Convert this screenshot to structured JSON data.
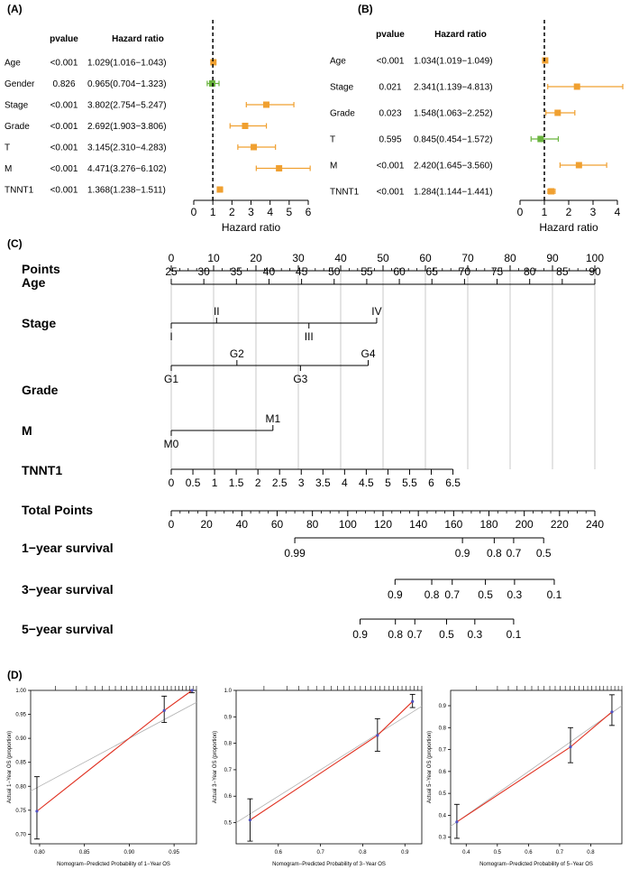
{
  "panels": {
    "A": {
      "label": "(A)",
      "header_pvalue": "pvalue",
      "header_hr": "Hazard ratio",
      "xlabel": "Hazard ratio",
      "xlim": [
        0,
        6
      ],
      "ticks": [
        "0",
        "1",
        "2",
        "3",
        "4",
        "5",
        "6"
      ],
      "ref": 1,
      "colors": {
        "sig": "#f0a030",
        "nonsig": "#6ab43e"
      },
      "rows": [
        {
          "name": "Age",
          "p": "<0.001",
          "hr_text": "1.029(1.016−1.043)",
          "hr": 1.029,
          "lo": 1.016,
          "hi": 1.043,
          "sig": true
        },
        {
          "name": "Gender",
          "p": "0.826",
          "hr_text": "0.965(0.704−1.323)",
          "hr": 0.965,
          "lo": 0.704,
          "hi": 1.323,
          "sig": false
        },
        {
          "name": "Stage",
          "p": "<0.001",
          "hr_text": "3.802(2.754−5.247)",
          "hr": 3.802,
          "lo": 2.754,
          "hi": 5.247,
          "sig": true
        },
        {
          "name": "Grade",
          "p": "<0.001",
          "hr_text": "2.692(1.903−3.806)",
          "hr": 2.692,
          "lo": 1.903,
          "hi": 3.806,
          "sig": true
        },
        {
          "name": "T",
          "p": "<0.001",
          "hr_text": "3.145(2.310−4.283)",
          "hr": 3.145,
          "lo": 2.31,
          "hi": 4.283,
          "sig": true
        },
        {
          "name": "M",
          "p": "<0.001",
          "hr_text": "4.471(3.276−6.102)",
          "hr": 4.471,
          "lo": 3.276,
          "hi": 6.102,
          "sig": true
        },
        {
          "name": "TNNT1",
          "p": "<0.001",
          "hr_text": "1.368(1.238−1.511)",
          "hr": 1.368,
          "lo": 1.238,
          "hi": 1.511,
          "sig": true
        }
      ]
    },
    "B": {
      "label": "(B)",
      "header_pvalue": "pvalue",
      "header_hr": "Hazard ratio",
      "xlabel": "Hazard ratio",
      "xlim": [
        0,
        4
      ],
      "ticks": [
        "0",
        "1",
        "2",
        "3",
        "4"
      ],
      "ref": 1,
      "colors": {
        "sig": "#f0a030",
        "nonsig": "#6ab43e"
      },
      "rows": [
        {
          "name": "Age",
          "p": "<0.001",
          "hr_text": "1.034(1.019−1.049)",
          "hr": 1.034,
          "lo": 1.019,
          "hi": 1.049,
          "sig": true
        },
        {
          "name": "Stage",
          "p": "0.021",
          "hr_text": "2.341(1.139−4.813)",
          "hr": 2.341,
          "lo": 1.139,
          "hi": 4.813,
          "sig": true
        },
        {
          "name": "Grade",
          "p": "0.023",
          "hr_text": "1.548(1.063−2.252)",
          "hr": 1.548,
          "lo": 1.063,
          "hi": 2.252,
          "sig": true
        },
        {
          "name": "T",
          "p": "0.595",
          "hr_text": "0.845(0.454−1.572)",
          "hr": 0.845,
          "lo": 0.454,
          "hi": 1.572,
          "sig": false
        },
        {
          "name": "M",
          "p": "<0.001",
          "hr_text": "2.420(1.645−3.560)",
          "hr": 2.42,
          "lo": 1.645,
          "hi": 3.56,
          "sig": true
        },
        {
          "name": "TNNT1",
          "p": "<0.001",
          "hr_text": "1.284(1.144−1.441)",
          "hr": 1.284,
          "lo": 1.144,
          "hi": 1.441,
          "sig": true
        }
      ]
    },
    "C": {
      "label": "(C)",
      "rows": [
        {
          "name": "Points",
          "scale": {
            "from": 0,
            "to": 100
          },
          "ticks": [
            "0",
            "10",
            "20",
            "30",
            "40",
            "50",
            "60",
            "70",
            "80",
            "90",
            "100"
          ]
        },
        {
          "name": "Age",
          "scale": {
            "from": 25,
            "to": 90
          },
          "ticks": [
            "25",
            "30",
            "35",
            "40",
            "45",
            "50",
            "55",
            "60",
            "65",
            "70",
            "75",
            "80",
            "85",
            "90"
          ]
        },
        {
          "name": "Stage",
          "categorical": [
            {
              "label": "I",
              "pts": 0,
              "pos": "below"
            },
            {
              "label": "II",
              "pts": 10.7,
              "pos": "above"
            },
            {
              "label": "III",
              "pts": 32.5,
              "pos": "below"
            },
            {
              "label": "IV",
              "pts": 48.5,
              "pos": "above"
            }
          ]
        },
        {
          "name": "Grade",
          "categorical": [
            {
              "label": "G1",
              "pts": 0,
              "pos": "below"
            },
            {
              "label": "G2",
              "pts": 15.5,
              "pos": "above"
            },
            {
              "label": "G3",
              "pts": 30.5,
              "pos": "below"
            },
            {
              "label": "G4",
              "pts": 46.5,
              "pos": "above"
            }
          ]
        },
        {
          "name": "M",
          "categorical": [
            {
              "label": "M0",
              "pts": 0,
              "pos": "below"
            },
            {
              "label": "M1",
              "pts": 24,
              "pos": "above"
            }
          ]
        },
        {
          "name": "TNNT1",
          "scale": {
            "from": 0,
            "to": 6.5
          },
          "ticks": [
            "0",
            "0.5",
            "1",
            "1.5",
            "2",
            "2.5",
            "3",
            "3.5",
            "4",
            "4.5",
            "5",
            "5.5",
            "6",
            "6.5"
          ]
        },
        {
          "name": "Total Points",
          "scale": {
            "from": 0,
            "to": 240
          },
          "ticks": [
            "0",
            "20",
            "40",
            "60",
            "80",
            "100",
            "120",
            "140",
            "160",
            "180",
            "200",
            "220",
            "240"
          ]
        },
        {
          "name": "1−year survival",
          "survival": [
            {
              "label": "0.99",
              "tp": 70
            },
            {
              "label": "0.9",
              "tp": 165
            },
            {
              "label": "0.8",
              "tp": 183
            },
            {
              "label": "0.7",
              "tp": 194
            },
            {
              "label": "0.5",
              "tp": 211
            }
          ]
        },
        {
          "name": "3−year survival",
          "survival": [
            {
              "label": "0.9",
              "tp": 126.8
            },
            {
              "label": "0.8",
              "tp": 147.6
            },
            {
              "label": "0.7",
              "tp": 159.2
            },
            {
              "label": "0.5",
              "tp": 178
            },
            {
              "label": "0.3",
              "tp": 194.5
            },
            {
              "label": "0.1",
              "tp": 217
            }
          ]
        },
        {
          "name": "5−year survival",
          "survival": [
            {
              "label": "0.9",
              "tp": 107
            },
            {
              "label": "0.8",
              "tp": 127
            },
            {
              "label": "0.7",
              "tp": 138
            },
            {
              "label": "0.5",
              "tp": 156
            },
            {
              "label": "0.3",
              "tp": 172
            },
            {
              "label": "0.1",
              "tp": 194
            }
          ]
        }
      ]
    },
    "D": {
      "label": "(D)",
      "plots": [
        {
          "xlabel": "Nomogram−Predicted Probability of 1−Year OS",
          "ylabel": "Actual 1−Year OS (proportion)",
          "xlim": [
            0.79,
            0.975
          ],
          "ylim": [
            0.68,
            1.0
          ],
          "xticks": [
            "0.80",
            "0.85",
            "0.90",
            "0.95"
          ],
          "yticks": [
            "0.70",
            "0.75",
            "0.80",
            "0.85",
            "0.90",
            "0.95",
            "1.00"
          ],
          "points": [
            {
              "x": 0.797,
              "y": 0.748,
              "lo": 0.69,
              "hi": 0.82
            },
            {
              "x": 0.939,
              "y": 0.958,
              "lo": 0.933,
              "hi": 0.988
            },
            {
              "x": 0.97,
              "y": 1.0,
              "lo": 0.995,
              "hi": 1.0
            }
          ]
        },
        {
          "xlabel": "Nomogram−Predicted Probability of 3−Year OS",
          "ylabel": "Actual 3−Year OS (proportion)",
          "xlim": [
            0.5,
            0.94
          ],
          "ylim": [
            0.42,
            1.0
          ],
          "xticks": [
            "0.6",
            "0.7",
            "0.8",
            "0.9"
          ],
          "yticks": [
            "0.5",
            "0.6",
            "0.7",
            "0.8",
            "0.9",
            "1.0"
          ],
          "points": [
            {
              "x": 0.533,
              "y": 0.51,
              "lo": 0.43,
              "hi": 0.59
            },
            {
              "x": 0.835,
              "y": 0.83,
              "lo": 0.77,
              "hi": 0.893
            },
            {
              "x": 0.918,
              "y": 0.958,
              "lo": 0.935,
              "hi": 0.985
            }
          ]
        },
        {
          "xlabel": "Nomogram−Predicted Probability of 5−Year OS",
          "ylabel": "Actual 5−Year OS (proportion)",
          "xlim": [
            0.35,
            0.9
          ],
          "ylim": [
            0.27,
            0.97
          ],
          "xticks": [
            "0.4",
            "0.5",
            "0.6",
            "0.7",
            "0.8"
          ],
          "yticks": [
            "0.3",
            "0.4",
            "0.5",
            "0.6",
            "0.7",
            "0.8",
            "0.9"
          ],
          "points": [
            {
              "x": 0.37,
              "y": 0.37,
              "lo": 0.295,
              "hi": 0.45
            },
            {
              "x": 0.735,
              "y": 0.712,
              "lo": 0.64,
              "hi": 0.8
            },
            {
              "x": 0.868,
              "y": 0.872,
              "lo": 0.81,
              "hi": 0.95
            }
          ]
        }
      ]
    }
  },
  "chart_data": [
    {
      "type": "scatter",
      "subtype": "forest",
      "panel": "A",
      "xlabel": "Hazard ratio",
      "xlim": [
        0,
        6
      ],
      "categories": [
        "Age",
        "Gender",
        "Stage",
        "Grade",
        "T",
        "M",
        "TNNT1"
      ],
      "values": [
        1.029,
        0.965,
        3.802,
        2.692,
        3.145,
        4.471,
        1.368
      ]
    },
    {
      "type": "scatter",
      "subtype": "forest",
      "panel": "B",
      "xlabel": "Hazard ratio",
      "xlim": [
        0,
        4
      ],
      "categories": [
        "Age",
        "Stage",
        "Grade",
        "T",
        "M",
        "TNNT1"
      ],
      "values": [
        1.034,
        2.341,
        1.548,
        0.845,
        2.42,
        1.284
      ]
    },
    {
      "type": "table",
      "subtype": "nomogram",
      "panel": "C"
    },
    {
      "type": "line",
      "subtype": "calibration",
      "panel": "D",
      "count": 3
    }
  ]
}
